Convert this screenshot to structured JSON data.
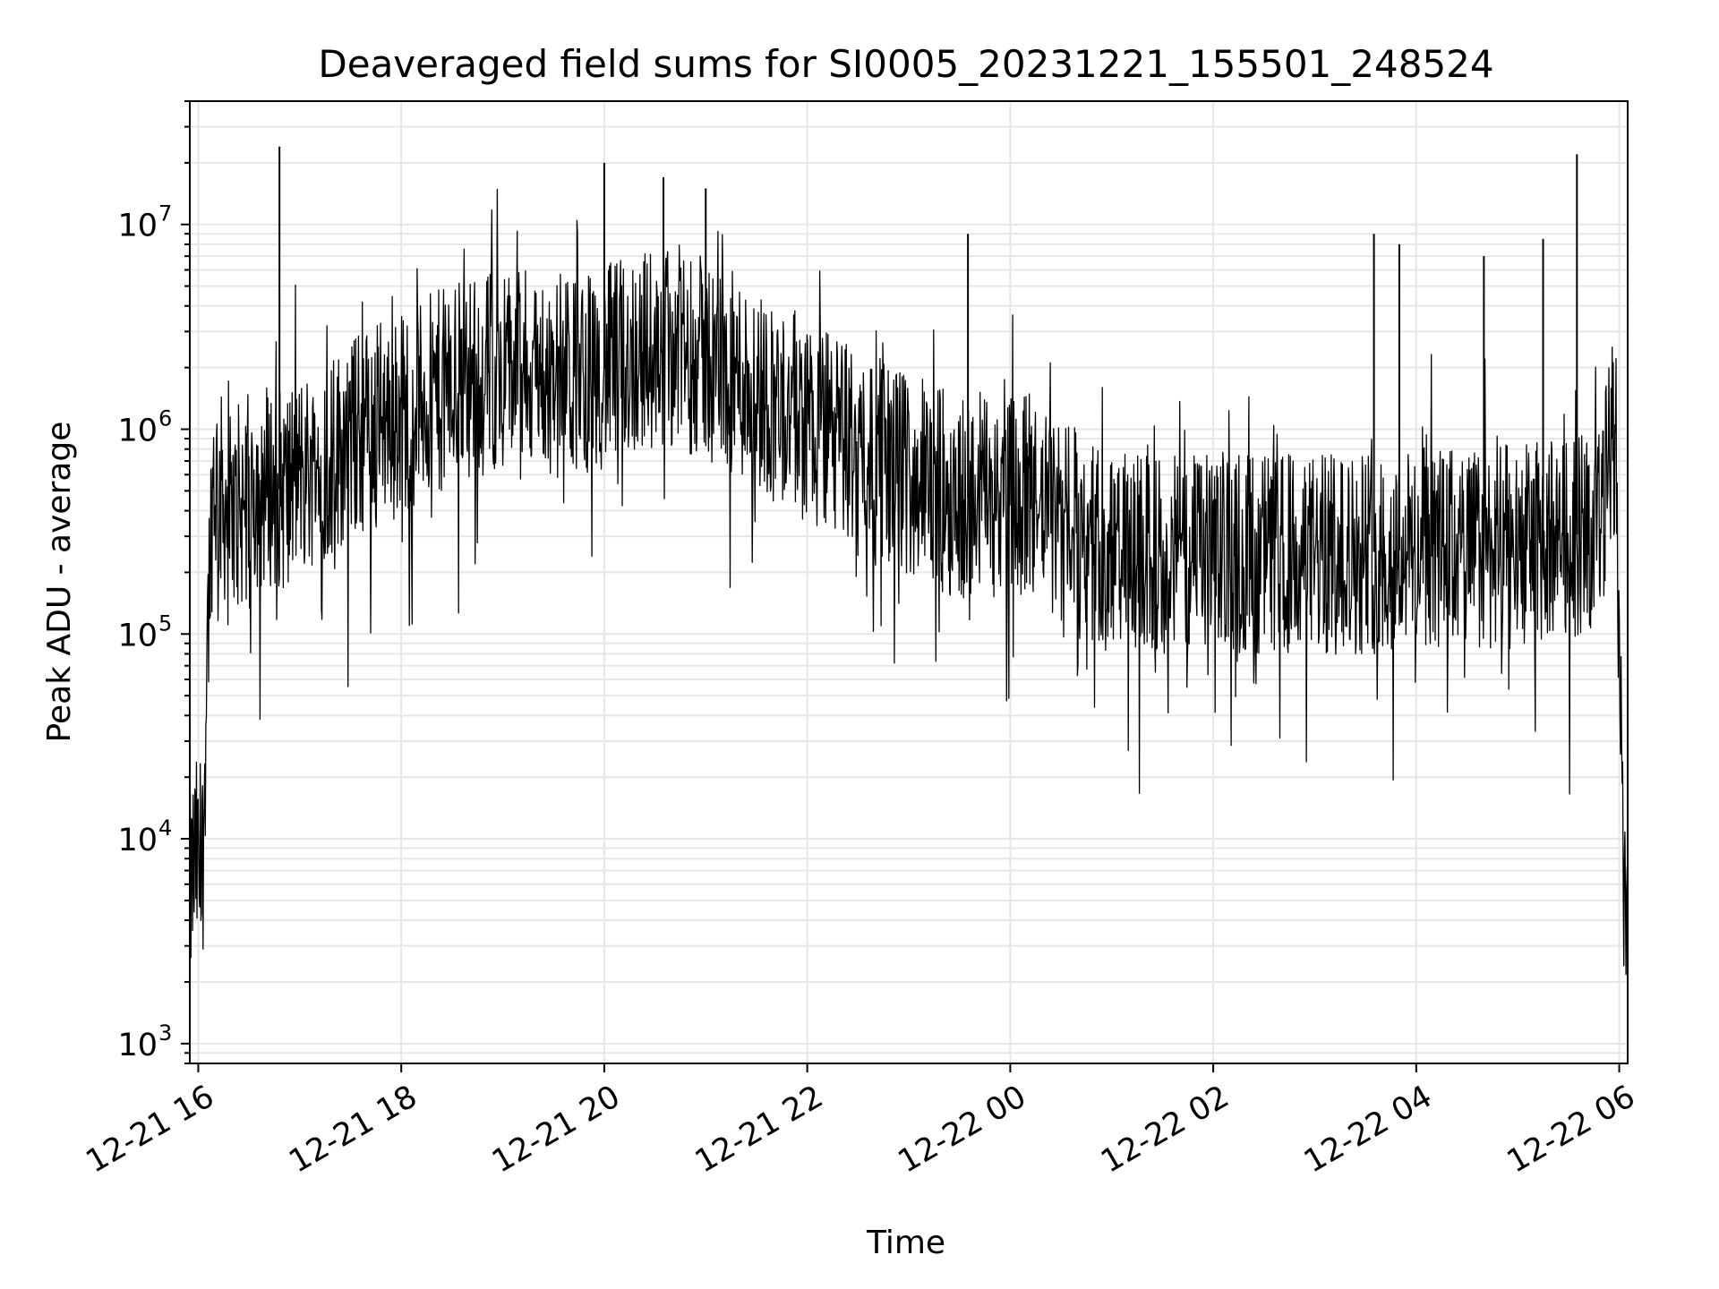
{
  "chart_data": {
    "type": "line",
    "title": "Deaveraged field sums for SI0005_20231221_155501_248524",
    "xlabel": "Time",
    "ylabel": "Peak ADU - average",
    "x_scale": "time",
    "y_scale": "log",
    "xlim": [
      "2023-12-21T15:55",
      "2023-12-22T06:05"
    ],
    "ylim": [
      800,
      40000000
    ],
    "grid": true,
    "legend": "none",
    "line_color": "#000000",
    "grid_color": "#e6e6e6",
    "x_ticks": [
      {
        "value": "2023-12-21T16:00",
        "label": "12-21 16"
      },
      {
        "value": "2023-12-21T18:00",
        "label": "12-21 18"
      },
      {
        "value": "2023-12-21T20:00",
        "label": "12-21 20"
      },
      {
        "value": "2023-12-21T22:00",
        "label": "12-21 22"
      },
      {
        "value": "2023-12-22T00:00",
        "label": "12-22 00"
      },
      {
        "value": "2023-12-22T02:00",
        "label": "12-22 02"
      },
      {
        "value": "2023-12-22T04:00",
        "label": "12-22 04"
      },
      {
        "value": "2023-12-22T06:00",
        "label": "12-22 06"
      }
    ],
    "y_ticks": [
      {
        "value": 1000,
        "base": "10",
        "exp": "3"
      },
      {
        "value": 10000,
        "base": "10",
        "exp": "4"
      },
      {
        "value": 100000,
        "base": "10",
        "exp": "5"
      },
      {
        "value": 1000000,
        "base": "10",
        "exp": "6"
      },
      {
        "value": 10000000,
        "base": "10",
        "exp": "7"
      }
    ],
    "series": [
      {
        "x": [
          "2023-12-21T15:55",
          "2023-12-21T15:57",
          "2023-12-21T15:59",
          "2023-12-21T16:01",
          "2023-12-21T16:03",
          "2023-12-21T16:05",
          "2023-12-21T16:07",
          "2023-12-21T16:09",
          "2023-12-21T16:12",
          "2023-12-21T16:15",
          "2023-12-21T16:20",
          "2023-12-21T16:25",
          "2023-12-21T16:30",
          "2023-12-21T16:40",
          "2023-12-21T16:50",
          "2023-12-21T17:00",
          "2023-12-21T17:15",
          "2023-12-21T17:30",
          "2023-12-21T17:45",
          "2023-12-21T18:00",
          "2023-12-21T18:20",
          "2023-12-21T18:40",
          "2023-12-21T19:00",
          "2023-12-21T19:20",
          "2023-12-21T19:40",
          "2023-12-21T20:00",
          "2023-12-21T20:20",
          "2023-12-21T20:40",
          "2023-12-21T21:00",
          "2023-12-21T21:20",
          "2023-12-21T21:40",
          "2023-12-21T22:00",
          "2023-12-21T22:20",
          "2023-12-21T22:40",
          "2023-12-21T23:00",
          "2023-12-21T23:20",
          "2023-12-21T23:40",
          "2023-12-22T00:00",
          "2023-12-22T00:20",
          "2023-12-22T00:40",
          "2023-12-22T01:00",
          "2023-12-22T01:30",
          "2023-12-22T02:00",
          "2023-12-22T02:30",
          "2023-12-22T03:00",
          "2023-12-22T03:30",
          "2023-12-22T04:00",
          "2023-12-22T04:30",
          "2023-12-22T05:00",
          "2023-12-22T05:30",
          "2023-12-22T05:45",
          "2023-12-22T05:50",
          "2023-12-22T05:55",
          "2023-12-22T05:58",
          "2023-12-22T06:00",
          "2023-12-22T06:02",
          "2023-12-22T06:04"
        ],
        "y": [
          5000,
          7000,
          8000,
          6000,
          9000,
          80000,
          250000,
          600000,
          500000,
          450000,
          350000,
          400000,
          500000,
          550000,
          500000,
          600000,
          700000,
          900000,
          1100000,
          1200000,
          1500000,
          1800000,
          2000000,
          1900000,
          1800000,
          2000000,
          2400000,
          2600000,
          2200000,
          1800000,
          1400000,
          1100000,
          900000,
          750000,
          600000,
          500000,
          450000,
          500000,
          400000,
          300000,
          250000,
          240000,
          250000,
          250000,
          240000,
          250000,
          260000,
          260000,
          270000,
          300000,
          320000,
          350000,
          900000,
          1000000,
          100000,
          8000,
          4000
        ]
      }
    ],
    "spikes": [
      {
        "x": "2023-12-21T16:48",
        "y": 24000000
      },
      {
        "x": "2023-12-21T20:00",
        "y": 20000000
      },
      {
        "x": "2023-12-21T20:35",
        "y": 17000000
      },
      {
        "x": "2023-12-21T21:00",
        "y": 15000000
      },
      {
        "x": "2023-12-21T23:35",
        "y": 9000000
      },
      {
        "x": "2023-12-22T03:35",
        "y": 9000000
      },
      {
        "x": "2023-12-22T03:50",
        "y": 8000000
      },
      {
        "x": "2023-12-22T04:40",
        "y": 7000000
      },
      {
        "x": "2023-12-22T05:15",
        "y": 8500000
      },
      {
        "x": "2023-12-22T05:35",
        "y": 22000000
      }
    ]
  }
}
